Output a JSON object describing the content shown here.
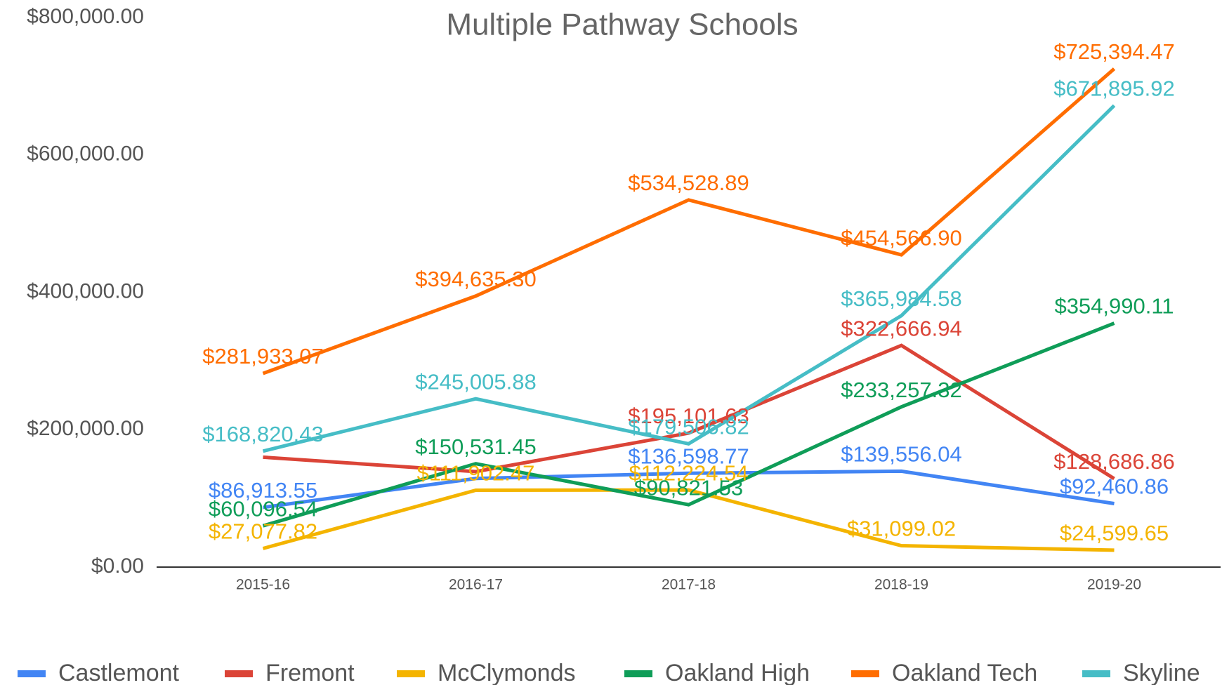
{
  "chart_data": {
    "type": "line",
    "title": "Multiple Pathway Schools",
    "categories": [
      "2015-16",
      "2016-17",
      "2017-18",
      "2018-19",
      "2019-20"
    ],
    "series": [
      {
        "name": "Castlemont",
        "color": "#4285f4",
        "values": [
          86913.55,
          129000,
          136598.77,
          139556.04,
          92460.86
        ],
        "value_labels": [
          "$86,913.55",
          null,
          "$136,598.77",
          "$139,556.04",
          "$92,460.86"
        ]
      },
      {
        "name": "Fremont",
        "color": "#db4437",
        "values": [
          160000,
          139000,
          195101.63,
          322666.94,
          128686.86
        ],
        "value_labels": [
          null,
          null,
          "$195,101.63",
          "$322,666.94",
          "$128,686.86"
        ]
      },
      {
        "name": "McClymonds",
        "color": "#f4b400",
        "values": [
          27077.82,
          111902.47,
          112224.54,
          31099.02,
          24599.65
        ],
        "value_labels": [
          "$27,077.82",
          "$111,902.47",
          "$112,224.54",
          "$31,099.02",
          "$24,599.65"
        ]
      },
      {
        "name": "Oakland High",
        "color": "#0f9d58",
        "values": [
          60096.54,
          150531.45,
          90821.53,
          233257.32,
          354990.11
        ],
        "value_labels": [
          "$60,096.54",
          "$150,531.45",
          "$90,821.53",
          "$233,257.32",
          "$354,990.11"
        ]
      },
      {
        "name": "Oakland Tech",
        "color": "#ff6d00",
        "values": [
          281933.07,
          394635.3,
          534528.89,
          454566.9,
          725394.47
        ],
        "value_labels": [
          "$281,933.07",
          "$394,635.30",
          "$534,528.89",
          "$454,566.90",
          "$725,394.47"
        ]
      },
      {
        "name": "Skyline",
        "color": "#46bdc6",
        "values": [
          168820.43,
          245005.88,
          179506.82,
          365984.58,
          671895.92
        ],
        "value_labels": [
          "$168,820.43",
          "$245,005.88",
          "$179,506.82",
          "$365,984.58",
          "$671,895.92"
        ]
      }
    ],
    "ylim": [
      0,
      800000
    ],
    "yticks": [
      {
        "value": 0,
        "label": "$0.00"
      },
      {
        "value": 200000,
        "label": "$200,000.00"
      },
      {
        "value": 400000,
        "label": "$400,000.00"
      },
      {
        "value": 600000,
        "label": "$600,000.00"
      },
      {
        "value": 800000,
        "label": "$800,000.00"
      }
    ],
    "grid": false,
    "legend": "bottom"
  }
}
